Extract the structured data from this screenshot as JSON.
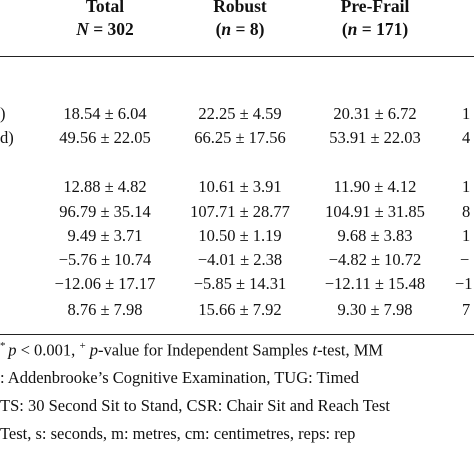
{
  "columns": [
    {
      "name": "Total",
      "n": "= 302"
    },
    {
      "name": "Robust",
      "n": "= 8"
    },
    {
      "name": "Pre-Frail",
      "n": "= 171"
    },
    {
      "name": "",
      "n": ""
    }
  ],
  "n_label": "N",
  "n_label_lower": "n",
  "row_labels_partial": [
    ")",
    "d)"
  ],
  "group1": [
    [
      "18.54 ± 6.04",
      "22.25 ± 4.59",
      "20.31 ± 6.72",
      "1"
    ],
    [
      "49.56 ± 22.05",
      "66.25 ± 17.56",
      "53.91 ± 22.03",
      "4"
    ]
  ],
  "group2": [
    [
      "12.88 ± 4.82",
      "10.61 ± 3.91",
      "11.90 ± 4.12",
      "1"
    ],
    [
      "96.79 ± 35.14",
      "107.71 ± 28.77",
      "104.91 ± 31.85",
      "8"
    ],
    [
      "9.49 ± 3.71",
      "10.50 ± 1.19",
      "9.68 ± 3.83",
      "1"
    ],
    [
      "−5.76 ± 10.74",
      "−4.01 ± 2.38",
      "−4.82 ± 10.72",
      "−"
    ],
    [
      "−12.06 ± 17.17",
      "−5.85 ± 14.31",
      "−12.11 ± 15.48",
      "−1"
    ],
    [
      "8.76 ± 7.98",
      "15.66 ± 7.92",
      "9.30 ± 7.98",
      "7"
    ]
  ],
  "footnotes": {
    "line1_a": "* ",
    "line1_p": "p",
    "line1_b": " < 0.001, ",
    "line1_plus": "+",
    "line1_c": " ",
    "line1_p2": "p",
    "line1_d": "-value for Independent Samples ",
    "line1_t": "t",
    "line1_e": "-test, MM",
    "line2": ": Addenbrooke’s Cognitive Examination, TUG: Timed",
    "line3": "TS: 30 Second Sit to Stand, CSR: Chair Sit and Reach Test",
    "line4": " Test, s: seconds, m: metres, cm: centimetres, reps: rep"
  }
}
